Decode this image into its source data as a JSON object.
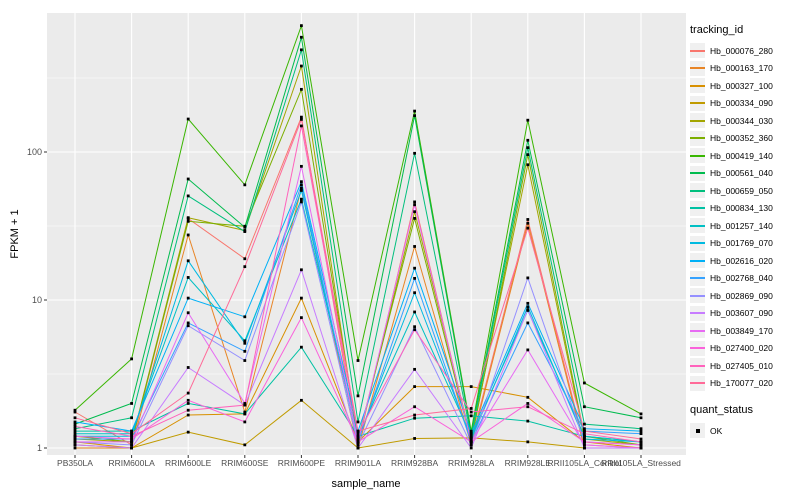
{
  "chart_data": {
    "type": "line",
    "title": "",
    "xlabel": "sample_name",
    "ylabel": "FPKM + 1",
    "y_scale": "log10",
    "y_ticks": [
      "1",
      "10",
      "100"
    ],
    "y_tick_values": [
      1,
      10,
      100
    ],
    "y_minor_values": [
      3.162,
      31.62,
      316.2
    ],
    "ylim": [
      0.9,
      850
    ],
    "grid": true,
    "legend_position": "right",
    "panel_bg": "#EBEBEB",
    "grid_color": "#FFFFFF",
    "tick_label_color": "#4D4D4D",
    "point_shape": "square",
    "point_color": "#000000",
    "categories": [
      "PB350LA",
      "RRIM600LA",
      "RRIM600LE",
      "RRIM600SE",
      "RRIM600PE",
      "RRIM901LA",
      "RRIM928BA",
      "RRIM928LA",
      "RRIM928LE",
      "RRII105LA_Control",
      "RRII105LA_Stressed"
    ],
    "series": [
      {
        "name": "Hb_000076_280",
        "color": "#F8766D",
        "values": [
          1.75,
          1.05,
          35.5,
          19,
          172,
          1.05,
          46,
          1.1,
          35,
          1.05,
          1.0
        ]
      },
      {
        "name": "Hb_000163_170",
        "color": "#E88526",
        "values": [
          1.0,
          1.0,
          27.5,
          1.75,
          57,
          1.0,
          23,
          1.05,
          33,
          1.0,
          1.0
        ]
      },
      {
        "name": "Hb_000327_100",
        "color": "#D89000",
        "values": [
          1.1,
          1.0,
          1.67,
          1.7,
          10.3,
          1.1,
          2.6,
          2.6,
          2.2,
          1.1,
          1.0
        ]
      },
      {
        "name": "Hb_000334_090",
        "color": "#C09B00",
        "values": [
          1.05,
          1.0,
          1.28,
          1.05,
          2.1,
          1.0,
          1.16,
          1.17,
          1.1,
          1.0,
          1.0
        ]
      },
      {
        "name": "Hb_000344_030",
        "color": "#A3A500",
        "values": [
          1.15,
          1.1,
          36,
          29.5,
          381,
          1.1,
          39.5,
          1.15,
          82,
          1.15,
          1.05
        ]
      },
      {
        "name": "Hb_000352_360",
        "color": "#7CAE00",
        "values": [
          1.2,
          1.1,
          34,
          31.5,
          265,
          1.15,
          35.6,
          1.1,
          96,
          1.2,
          1.05
        ]
      },
      {
        "name": "Hb_000419_140",
        "color": "#39B600",
        "values": [
          1.8,
          4.0,
          167,
          60,
          714,
          3.9,
          189,
          1.3,
          164,
          2.75,
          1.7
        ]
      },
      {
        "name": "Hb_000561_040",
        "color": "#00BB4E",
        "values": [
          1.45,
          2.0,
          65.7,
          31,
          596,
          2.25,
          176,
          1.25,
          120,
          1.9,
          1.6
        ]
      },
      {
        "name": "Hb_000659_050",
        "color": "#00BF7D",
        "values": [
          1.35,
          1.6,
          50.5,
          29,
          490,
          1.5,
          98,
          1.2,
          107,
          1.45,
          1.35
        ]
      },
      {
        "name": "Hb_000834_130",
        "color": "#00C1A3",
        "values": [
          1.3,
          1.3,
          2.0,
          1.7,
          4.8,
          1.2,
          1.59,
          1.65,
          1.52,
          1.2,
          1.1
        ]
      },
      {
        "name": "Hb_001257_140",
        "color": "#00BFC4",
        "values": [
          1.25,
          1.25,
          14.2,
          5.3,
          48,
          1.2,
          8.3,
          1.2,
          8.5,
          1.2,
          1.1
        ]
      },
      {
        "name": "Hb_001769_070",
        "color": "#00BAE0",
        "values": [
          1.2,
          1.2,
          18.4,
          5.1,
          55,
          1.15,
          11.2,
          1.15,
          9.0,
          1.15,
          1.1
        ]
      },
      {
        "name": "Hb_002616_020",
        "color": "#00B0F6",
        "values": [
          1.5,
          1.3,
          10.3,
          7.7,
          63,
          1.3,
          16.4,
          1.25,
          9.5,
          1.35,
          1.3
        ]
      },
      {
        "name": "Hb_002768_040",
        "color": "#35A2FF",
        "values": [
          1.15,
          1.15,
          7.0,
          4.5,
          60,
          1.1,
          14.0,
          1.1,
          7.0,
          1.3,
          1.25
        ]
      },
      {
        "name": "Hb_002869_090",
        "color": "#9590FF",
        "values": [
          1.1,
          1.05,
          6.7,
          3.9,
          46,
          1.05,
          6.6,
          1.05,
          14.1,
          1.1,
          1.05
        ]
      },
      {
        "name": "Hb_003607_090",
        "color": "#C77CFF",
        "values": [
          1.05,
          1.0,
          3.5,
          1.95,
          16,
          1.0,
          3.4,
          1.0,
          8.6,
          1.0,
          1.0
        ]
      },
      {
        "name": "Hb_003849_170",
        "color": "#E76BF3",
        "values": [
          1.1,
          1.1,
          8.2,
          2.0,
          80,
          1.1,
          44,
          1.1,
          4.6,
          1.05,
          1.0
        ]
      },
      {
        "name": "Hb_027400_020",
        "color": "#FA62DB",
        "values": [
          1.2,
          1.15,
          2.1,
          1.5,
          7.6,
          1.1,
          1.9,
          1.1,
          2.0,
          1.1,
          1.05
        ]
      },
      {
        "name": "Hb_027405_010",
        "color": "#FF62BC",
        "values": [
          1.4,
          1.2,
          1.8,
          1.95,
          150,
          1.25,
          6.3,
          1.75,
          1.9,
          1.25,
          1.1
        ]
      },
      {
        "name": "Hb_170077_020",
        "color": "#FF6A98",
        "values": [
          1.6,
          1.25,
          2.35,
          16.8,
          166,
          1.3,
          1.67,
          1.85,
          30.6,
          1.3,
          1.15
        ]
      }
    ],
    "legend": {
      "tracking_title": "tracking_id",
      "quant_title": "quant_status",
      "quant_entries": [
        {
          "label": "OK"
        }
      ]
    }
  }
}
